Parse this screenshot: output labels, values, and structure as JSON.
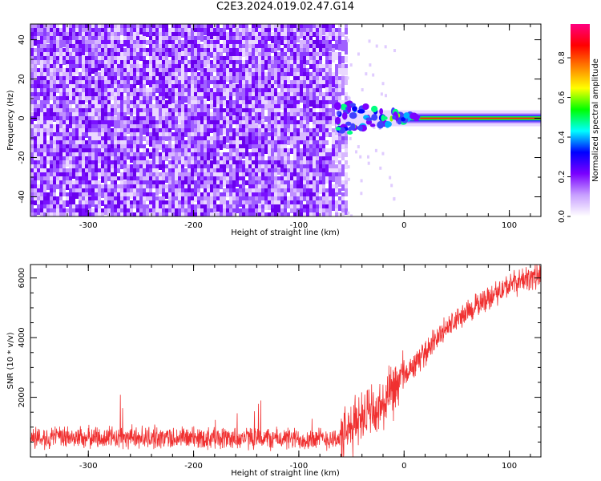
{
  "page": {
    "title": "C2E3.2024.019.02.47.G14"
  },
  "chart_data": [
    {
      "type": "heatmap",
      "xlabel": "Height of straight line (km)",
      "ylabel": "Frequency (Hz)",
      "xlim": [
        -355,
        130
      ],
      "ylim": [
        -50,
        48
      ],
      "x_ticks": [
        -300,
        -200,
        -100,
        0,
        100
      ],
      "x_tick_labels": [
        "-300",
        "-200",
        "-100",
        "0",
        "100"
      ],
      "y_ticks": [
        -40,
        -20,
        0,
        20,
        40
      ],
      "y_tick_labels": [
        "-40",
        "-20",
        "0",
        "20",
        "40"
      ],
      "noise_region_x": [
        -355,
        -55
      ],
      "transition_region_x": [
        -65,
        0
      ],
      "signal_frequency_hz": 0,
      "colorbar": {
        "label": "Normalized spectral amplitude",
        "range": [
          0,
          0.97
        ],
        "ticks": [
          0.0,
          0.2,
          0.4,
          0.6,
          0.8
        ],
        "tick_labels": [
          "0.0",
          "0.2",
          "0.4",
          "0.6",
          "0.8"
        ],
        "colors": [
          "#ffffff",
          "#c8a0ff",
          "#7a00ff",
          "#0000ff",
          "#00ffff",
          "#00ff00",
          "#ffff00",
          "#ff8000",
          "#ff0000",
          "#ff0080"
        ]
      },
      "grid": false
    },
    {
      "type": "line",
      "xlabel": "Height of straight line (km)",
      "ylabel": "SNR (10 * v/v)",
      "xlim": [
        -355,
        130
      ],
      "ylim": [
        0,
        6450
      ],
      "x_ticks": [
        -300,
        -200,
        -100,
        0,
        100
      ],
      "x_tick_labels": [
        "-300",
        "-200",
        "-100",
        "0",
        "100"
      ],
      "y_ticks": [
        2000,
        4000,
        6000
      ],
      "y_tick_labels": [
        "2000",
        "4000",
        "6000"
      ],
      "series": [
        {
          "color": "#f03030",
          "x": [
            -355,
            -300,
            -250,
            -200,
            -150,
            -100,
            -60,
            -50,
            -40,
            -30,
            -20,
            -10,
            0,
            10,
            20,
            30,
            40,
            50,
            60,
            70,
            80,
            90,
            100,
            110,
            120,
            130
          ],
          "values": [
            650,
            650,
            650,
            640,
            630,
            600,
            620,
            900,
            1500,
            1400,
            1700,
            2200,
            2700,
            3100,
            3500,
            3950,
            4300,
            4600,
            4850,
            5100,
            5350,
            5550,
            5750,
            5900,
            6000,
            6100
          ]
        }
      ],
      "grid": false
    }
  ]
}
